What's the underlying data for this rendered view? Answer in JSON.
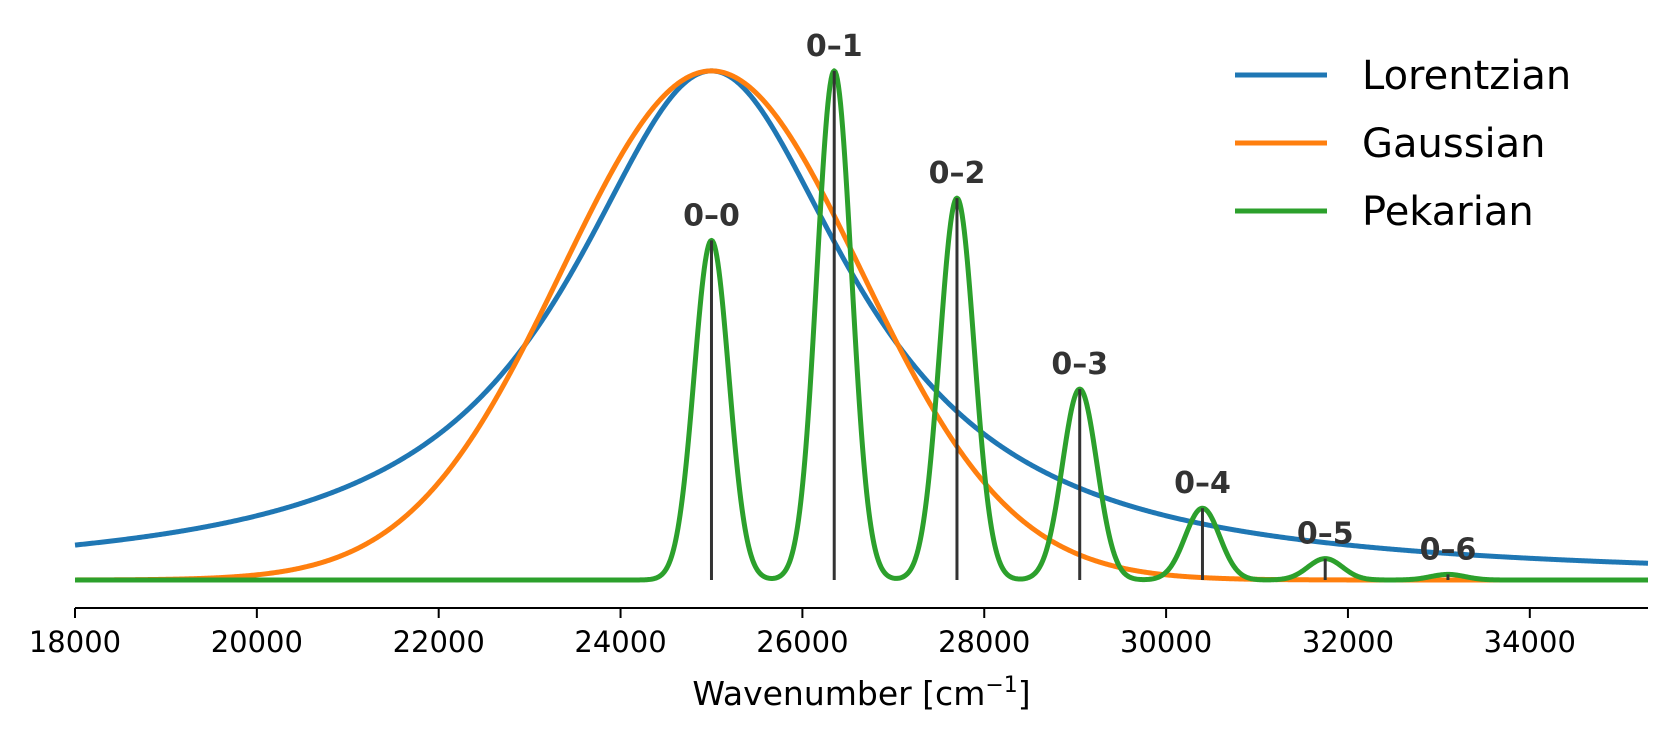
{
  "chart_data": {
    "type": "line",
    "title": "",
    "xlabel": "Wavenumber [cm",
    "xlabel_sup": "−1",
    "xlabel_end": "]",
    "ylabel": "",
    "xlim": [
      18000,
      35300
    ],
    "ylim": [
      -0.055,
      1.1
    ],
    "grid": false,
    "legend_position": "top-right",
    "x_ticks": [
      18000,
      20000,
      22000,
      24000,
      26000,
      28000,
      30000,
      32000,
      34000
    ],
    "x_tick_labels": [
      "18000",
      "20000",
      "22000",
      "24000",
      "26000",
      "28000",
      "30000",
      "32000",
      "34000"
    ],
    "center": 25000,
    "vibrational_spacing": 1350,
    "huang_rhys": 1.5,
    "vibronic_sigma": 190,
    "gaussian_sigma": 1650,
    "lorentzian_gamma": 1900,
    "series": [
      {
        "name": "Lorentzian",
        "color": "#1f77b4"
      },
      {
        "name": "Gaussian",
        "color": "#ff7f0e"
      },
      {
        "name": "Pekarian",
        "color": "#2ca02c"
      }
    ],
    "transitions": [
      {
        "label": "0–0",
        "x": 25000,
        "intensity": 0.667
      },
      {
        "label": "0–1",
        "x": 26350,
        "intensity": 1.0
      },
      {
        "label": "0–2",
        "x": 27700,
        "intensity": 0.75
      },
      {
        "label": "0–3",
        "x": 29050,
        "intensity": 0.375
      },
      {
        "label": "0–4",
        "x": 30400,
        "intensity": 0.141
      },
      {
        "label": "0–5",
        "x": 31750,
        "intensity": 0.042
      },
      {
        "label": "0–6",
        "x": 33100,
        "intensity": 0.011
      }
    ],
    "stick_color": "#333333"
  }
}
